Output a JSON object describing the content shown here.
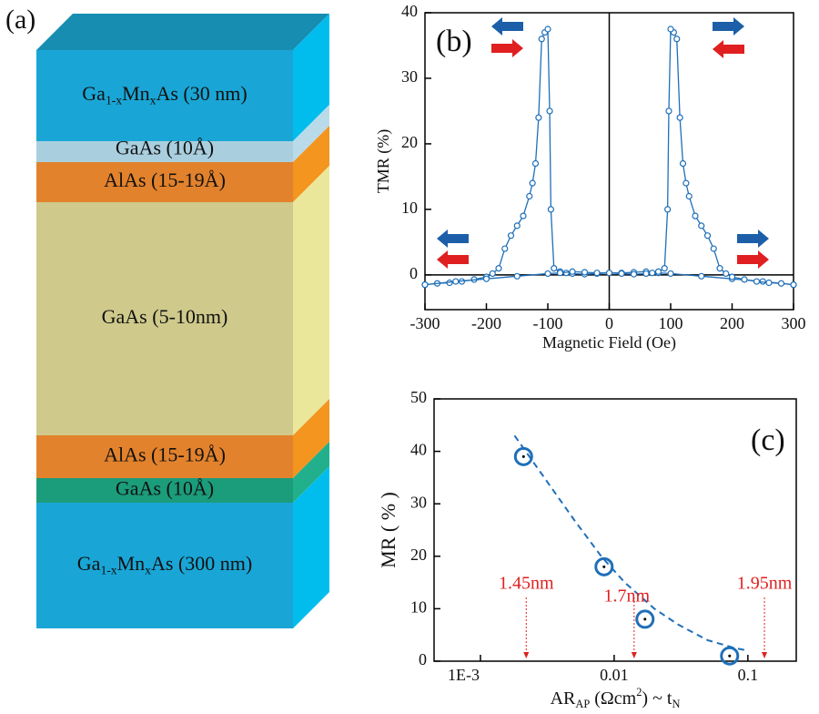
{
  "diagram": {
    "panel_label": "(a)",
    "layers": [
      {
        "label": [
          "Ga",
          {
            "sub": "1-x"
          },
          "Mn",
          {
            "sub": "x"
          },
          "As (30 nm)"
        ],
        "color": "#19a6d6",
        "side_color": "#00bdee"
      },
      {
        "label": [
          "GaAs (10Å)"
        ],
        "color": "#a9cfdf",
        "side_color": "#b9dbe9"
      },
      {
        "label": [
          "AlAs (15-19Å)"
        ],
        "color": "#e2822c",
        "side_color": "#f3951f"
      },
      {
        "label": [
          "GaAs (5-10nm)"
        ],
        "color": "#cfca8b",
        "side_color": "#eae79b"
      },
      {
        "label": [
          "AlAs (15-19Å)"
        ],
        "color": "#e2822c",
        "side_color": "#f3951f"
      },
      {
        "label": [
          "GaAs (10Å)"
        ],
        "color": "#1b9c7b",
        "side_color": "#22b08c"
      },
      {
        "label": [
          "Ga",
          {
            "sub": "1-x"
          },
          "Mn",
          {
            "sub": "x"
          },
          "As (300 nm)"
        ],
        "color": "#19a6d6",
        "side_color": "#00bdee"
      }
    ],
    "top_color": "#178db2"
  },
  "chart_data": [
    {
      "type": "line",
      "panel_label": "(b)",
      "x_label": [
        "Magnetic Field (Oe)"
      ],
      "y_label": [
        "TMR (%)"
      ],
      "xlim": [
        -300,
        300
      ],
      "ylim": [
        -5.3,
        40
      ],
      "xticks": [
        -300,
        -200,
        -100,
        0,
        100,
        200,
        300
      ],
      "yticks": [
        0,
        10,
        20,
        30,
        40
      ],
      "zero_lines": true,
      "series": [
        {
          "color": "#1f6fb8",
          "marker": "circle",
          "x": [
            -300,
            -280,
            -260,
            -240,
            -220,
            -200,
            -190,
            -180,
            -170,
            -160,
            -150,
            -140,
            -130,
            -125,
            -120,
            -115,
            -110,
            -105,
            -100,
            -97,
            -95,
            -90,
            -80,
            -70,
            -60,
            -40,
            -20,
            0,
            20,
            40,
            60,
            80,
            100,
            150,
            200,
            250,
            300
          ],
          "values": [
            -1.5,
            -1.3,
            -1.2,
            -1,
            -0.7,
            -0.3,
            0.2,
            1,
            4,
            6,
            7.5,
            9,
            12,
            14,
            17,
            24,
            36,
            37,
            37.5,
            25,
            10,
            1,
            0.5,
            0.3,
            0.2,
            0.1,
            0.2,
            0.3,
            0.3,
            0.4,
            0.5,
            0.3,
            0.2,
            -0.2,
            -0.6,
            -1,
            -1.5
          ]
        },
        {
          "color": "#1f6fb8",
          "marker": "circle",
          "x": [
            300,
            280,
            260,
            240,
            220,
            200,
            190,
            180,
            170,
            160,
            150,
            140,
            130,
            125,
            120,
            115,
            110,
            105,
            100,
            97,
            95,
            90,
            80,
            70,
            60,
            40,
            20,
            0,
            -20,
            -40,
            -60,
            -80,
            -100,
            -150,
            -200,
            -250,
            -300
          ],
          "values": [
            -1.5,
            -1.3,
            -1.2,
            -1,
            -0.7,
            -0.3,
            0.2,
            1,
            4,
            6,
            7.5,
            9,
            12,
            14,
            17,
            24,
            36,
            37,
            37.5,
            25,
            10,
            1,
            0.5,
            0.3,
            0.2,
            0.1,
            0.2,
            0.3,
            0.3,
            0.4,
            0.5,
            0.3,
            0.2,
            -0.2,
            -0.6,
            -1,
            -1.5
          ]
        }
      ]
    },
    {
      "type": "scatter",
      "panel_label": "(c)",
      "x_label": [
        "AR",
        {
          "sub": "AP"
        },
        " (Ωcm",
        {
          "sup": "2"
        },
        ") ~ t",
        {
          "sub": "N"
        }
      ],
      "y_label": [
        "MR ( % )"
      ],
      "xscale": "log",
      "xlim": [
        0.00045,
        0.23
      ],
      "ylim": [
        0,
        50
      ],
      "xticks": [
        {
          "value": 0.001,
          "label": "1E-3"
        },
        0.01,
        0.1
      ],
      "yticks": [
        0,
        10,
        20,
        30,
        40,
        50
      ],
      "series": [
        {
          "color": "#1f6fb8",
          "marker": "circle",
          "x": [
            0.0021,
            0.0084,
            0.017,
            0.073
          ],
          "values": [
            39,
            18,
            8,
            1
          ]
        },
        {
          "color": "#1f6fb8",
          "line_style": "dashed",
          "x": [
            0.0018,
            0.003,
            0.005,
            0.008,
            0.012,
            0.02,
            0.03,
            0.05,
            0.08,
            0.1
          ],
          "values": [
            43,
            35,
            27,
            20,
            15,
            10,
            7,
            4,
            2.5,
            2
          ]
        }
      ],
      "annotations": [
        {
          "text": "1.45nm",
          "x": 0.0022,
          "color": "#e02020"
        },
        {
          "text": "1.7nm",
          "x": 0.0141,
          "color": "#e02020"
        },
        {
          "text": "1.95nm",
          "x": 0.133,
          "color": "#e02020"
        }
      ]
    }
  ]
}
